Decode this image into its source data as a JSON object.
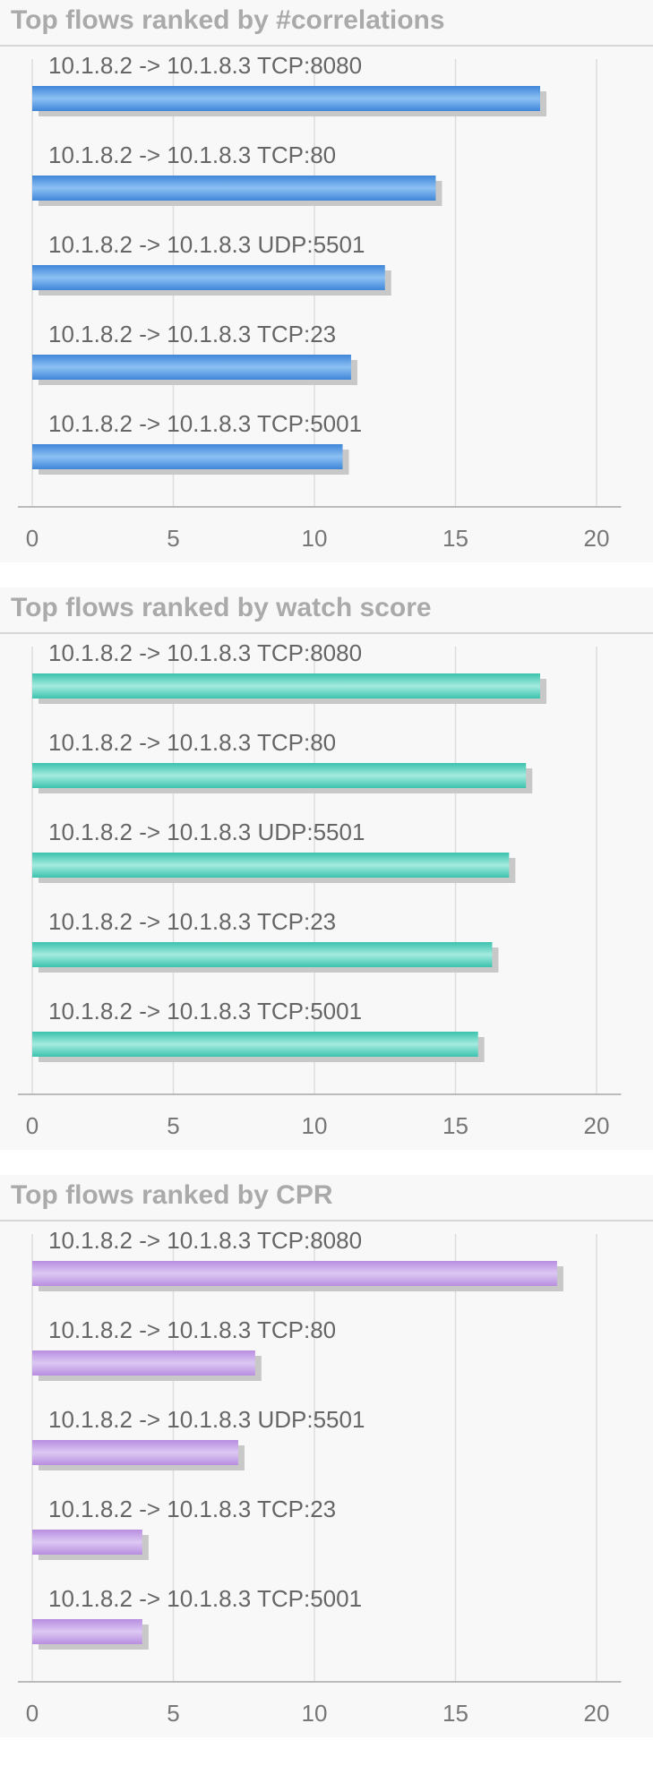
{
  "charts": [
    {
      "id": "correlations",
      "title": "Top flows ranked by #correlations",
      "bar_color_dark": "#3f86d8",
      "bar_color_light": "#8cc0f4",
      "chart_data": {
        "type": "bar",
        "orientation": "horizontal",
        "title": "Top flows ranked by #correlations",
        "categories": [
          "10.1.8.2 -> 10.1.8.3 TCP:8080",
          "10.1.8.2 -> 10.1.8.3 TCP:80",
          "10.1.8.2 -> 10.1.8.3 UDP:5501",
          "10.1.8.2 -> 10.1.8.3 TCP:23",
          "10.1.8.2 -> 10.1.8.3 TCP:5001"
        ],
        "values": [
          18,
          14.3,
          12.5,
          11.3,
          11
        ],
        "xlim": [
          0,
          21
        ],
        "ticks": [
          0,
          5,
          10,
          15,
          20
        ],
        "tick_labels": [
          "0",
          "5",
          "10",
          "15",
          "20"
        ],
        "grid": true
      }
    },
    {
      "id": "watch-score",
      "title": "Top flows ranked by watch score",
      "bar_color_dark": "#3cc1ad",
      "bar_color_light": "#a3ecdf",
      "chart_data": {
        "type": "bar",
        "orientation": "horizontal",
        "title": "Top flows ranked by watch score",
        "categories": [
          "10.1.8.2 -> 10.1.8.3 TCP:8080",
          "10.1.8.2 -> 10.1.8.3 TCP:80",
          "10.1.8.2 -> 10.1.8.3 UDP:5501",
          "10.1.8.2 -> 10.1.8.3 TCP:23",
          "10.1.8.2 -> 10.1.8.3 TCP:5001"
        ],
        "values": [
          18,
          17.5,
          16.9,
          16.3,
          15.8
        ],
        "xlim": [
          0,
          21
        ],
        "ticks": [
          0,
          5,
          10,
          15,
          20
        ],
        "tick_labels": [
          "0",
          "5",
          "10",
          "15",
          "20"
        ],
        "grid": true
      }
    },
    {
      "id": "cpr",
      "title": "Top flows ranked by CPR",
      "bar_color_dark": "#b88ee0",
      "bar_color_light": "#dcc8f3",
      "chart_data": {
        "type": "bar",
        "orientation": "horizontal",
        "title": "Top flows ranked by CPR",
        "categories": [
          "10.1.8.2 -> 10.1.8.3 TCP:8080",
          "10.1.8.2 -> 10.1.8.3 TCP:80",
          "10.1.8.2 -> 10.1.8.3 UDP:5501",
          "10.1.8.2 -> 10.1.8.3 TCP:23",
          "10.1.8.2 -> 10.1.8.3 TCP:5001"
        ],
        "values": [
          18.6,
          7.9,
          7.3,
          3.9,
          3.9
        ],
        "xlim": [
          0,
          21
        ],
        "ticks": [
          0,
          5,
          10,
          15,
          20
        ],
        "tick_labels": [
          "0",
          "5",
          "10",
          "15",
          "20"
        ],
        "grid": true
      }
    }
  ]
}
